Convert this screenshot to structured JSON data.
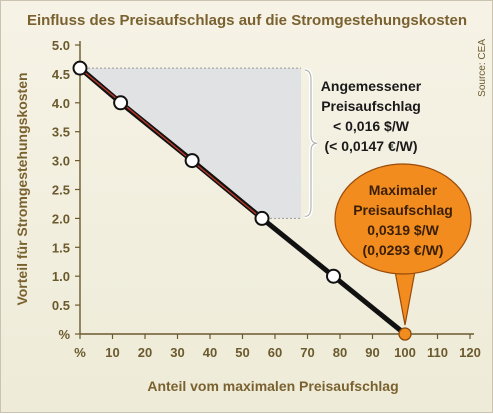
{
  "chart_data": {
    "type": "line",
    "title": "Einfluss des Preisaufschlags auf die Stromgestehungskosten",
    "xlabel": "Anteil vom maximalen Preisaufschlag",
    "ylabel": "Vorteil für Stromgestehungskosten",
    "xlim": [
      0,
      120
    ],
    "ylim": [
      0,
      5.0
    ],
    "x_ticks": [
      0,
      10,
      20,
      30,
      40,
      50,
      60,
      70,
      80,
      90,
      100,
      110,
      120
    ],
    "x_tick_labels": [
      "%",
      "10",
      "20",
      "30",
      "40",
      "50",
      "60",
      "70",
      "80",
      "90",
      "100",
      "110",
      "120"
    ],
    "y_ticks": [
      0,
      0.5,
      1.0,
      1.5,
      2.0,
      2.5,
      3.0,
      3.5,
      4.0,
      4.5,
      5.0
    ],
    "y_tick_labels": [
      "%",
      "0.5",
      "1.0",
      "1.5",
      "2.0",
      "2.5",
      "3.0",
      "3.5",
      "4.0",
      "4.5",
      "5.0"
    ],
    "series": [
      {
        "x": [
          0,
          12.5,
          34.5,
          56,
          78,
          100
        ],
        "y": [
          4.6,
          4.0,
          3.0,
          2.0,
          1.0,
          0
        ],
        "color": "#111111"
      }
    ],
    "highlight_segment": {
      "x": [
        0,
        56
      ],
      "y": [
        4.6,
        2.0
      ],
      "color": "#c0392b"
    },
    "endpoint_marker_color": "#f28c1e",
    "grid": false,
    "source": "Source: CEA",
    "annotations": [
      {
        "id": "angemessen",
        "lines": [
          "Angemessener",
          "Preisaufschlag",
          "< 0,016 $/W",
          "(< 0,0147 €/W)"
        ]
      },
      {
        "id": "maximal",
        "lines": [
          "Maximaler",
          "Preisaufschlag",
          "0,0319 $/W",
          "(0,0293 €/W)"
        ]
      }
    ],
    "colors": {
      "text": "#7a6230",
      "callout_fill": "#f28c1e",
      "callout_stroke": "#9a4a0a",
      "shade": "#e1e2e4"
    }
  }
}
